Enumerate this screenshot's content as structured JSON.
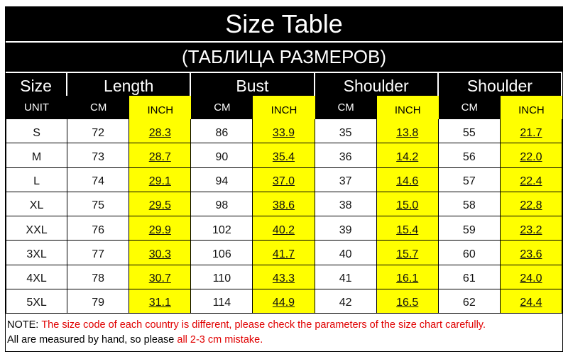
{
  "header": {
    "title": "Size Table",
    "subtitle": "(ТАБЛИЦА РАЗМЕРОВ)"
  },
  "table": {
    "groups": [
      "Size",
      "Length",
      "Bust",
      "Shoulder",
      "Shoulder"
    ],
    "units": [
      "UNIT",
      "CM",
      "INCH",
      "CM",
      "INCH",
      "CM",
      "INCH",
      "CM",
      "INCH"
    ],
    "rows": [
      [
        "S",
        "72",
        "28.3",
        "86",
        "33.9",
        "35",
        "13.8",
        "55",
        "21.7"
      ],
      [
        "M",
        "73",
        "28.7",
        "90",
        "35.4",
        "36",
        "14.2",
        "56",
        "22.0"
      ],
      [
        "L",
        "74",
        "29.1",
        "94",
        "37.0",
        "37",
        "14.6",
        "57",
        "22.4"
      ],
      [
        "XL",
        "75",
        "29.5",
        "98",
        "38.6",
        "38",
        "15.0",
        "58",
        "22.8"
      ],
      [
        "XXL",
        "76",
        "29.9",
        "102",
        "40.2",
        "39",
        "15.4",
        "59",
        "23.2"
      ],
      [
        "3XL",
        "77",
        "30.3",
        "106",
        "41.7",
        "40",
        "15.7",
        "60",
        "23.6"
      ],
      [
        "4XL",
        "78",
        "30.7",
        "110",
        "43.3",
        "41",
        "16.1",
        "61",
        "24.0"
      ],
      [
        "5XL",
        "79",
        "31.1",
        "114",
        "44.9",
        "42",
        "16.5",
        "62",
        "24.4"
      ]
    ]
  },
  "note": {
    "lines": [
      [
        "NOTE:",
        "The size code of each country is different, please check the parameters of the size chart carefully."
      ],
      [
        "All are measured by hand, so please",
        "all 2-3 cm mistake."
      ]
    ]
  }
}
